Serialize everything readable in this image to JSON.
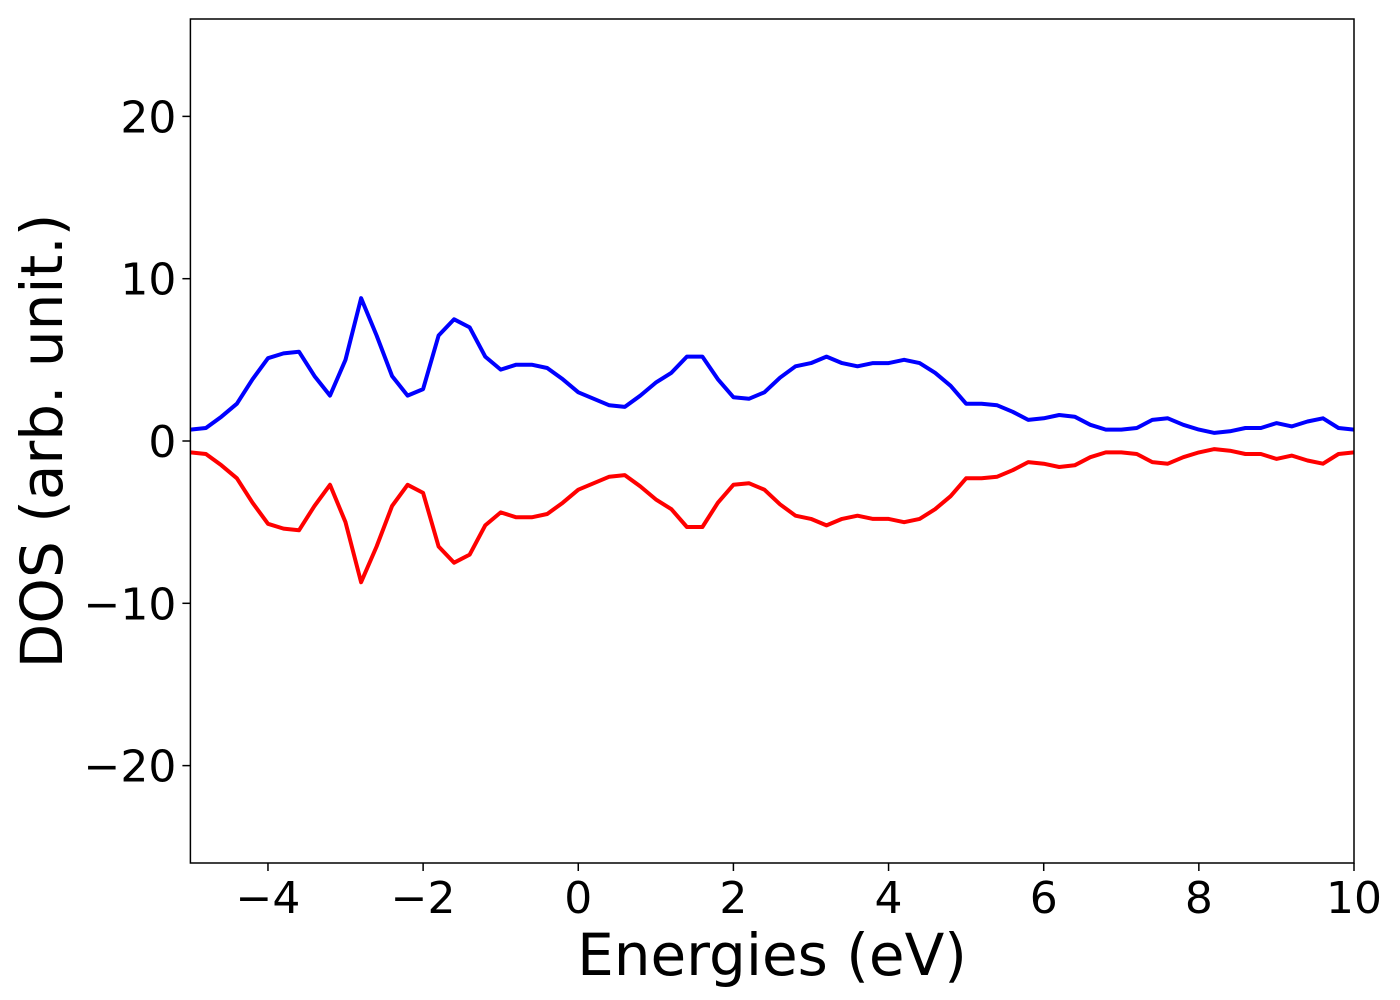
{
  "chart_data": {
    "type": "line",
    "xlabel": "Energies (eV)",
    "ylabel": "DOS (arb. unit.)",
    "x": [
      -5.0,
      -4.8,
      -4.6,
      -4.4,
      -4.2,
      -4.0,
      -3.8,
      -3.6,
      -3.4,
      -3.2,
      -3.0,
      -2.8,
      -2.6,
      -2.4,
      -2.2,
      -2.0,
      -1.8,
      -1.6,
      -1.4,
      -1.2,
      -1.0,
      -0.8,
      -0.6,
      -0.4,
      -0.2,
      0.0,
      0.2,
      0.4,
      0.6,
      0.8,
      1.0,
      1.2,
      1.4,
      1.6,
      1.8,
      2.0,
      2.2,
      2.4,
      2.6,
      2.8,
      3.0,
      3.2,
      3.4,
      3.6,
      3.8,
      4.0,
      4.2,
      4.4,
      4.6,
      4.8,
      5.0,
      5.2,
      5.4,
      5.6,
      5.8,
      6.0,
      6.2,
      6.4,
      6.6,
      6.8,
      7.0,
      7.2,
      7.4,
      7.6,
      7.8,
      8.0,
      8.2,
      8.4,
      8.6,
      8.8,
      9.0,
      9.2,
      9.4,
      9.6,
      9.8,
      10.0
    ],
    "series": [
      {
        "color": "#0000ff",
        "values": [
          0.7,
          0.8,
          1.5,
          2.3,
          3.8,
          5.1,
          5.4,
          5.5,
          4.0,
          2.8,
          5.0,
          8.8,
          6.5,
          4.0,
          2.8,
          3.2,
          6.5,
          7.5,
          7.0,
          5.2,
          4.4,
          4.7,
          4.7,
          4.5,
          3.8,
          3.0,
          2.6,
          2.2,
          2.1,
          2.8,
          3.6,
          4.2,
          5.2,
          5.2,
          3.8,
          2.7,
          2.6,
          3.0,
          3.9,
          4.6,
          4.8,
          5.2,
          4.8,
          4.6,
          4.8,
          4.8,
          5.0,
          4.8,
          4.2,
          3.4,
          2.3,
          2.3,
          2.2,
          1.8,
          1.3,
          1.4,
          1.6,
          1.5,
          1.0,
          0.7,
          0.7,
          0.8,
          1.3,
          1.4,
          1.0,
          0.7,
          0.5,
          0.6,
          0.8,
          0.8,
          1.1,
          0.9,
          1.2,
          1.4,
          0.8,
          0.7
        ]
      },
      {
        "color": "#ff0000",
        "values": [
          -0.7,
          -0.8,
          -1.5,
          -2.3,
          -3.8,
          -5.1,
          -5.4,
          -5.5,
          -4.0,
          -2.7,
          -5.0,
          -8.7,
          -6.5,
          -4.0,
          -2.7,
          -3.2,
          -6.5,
          -7.5,
          -7.0,
          -5.2,
          -4.4,
          -4.7,
          -4.7,
          -4.5,
          -3.8,
          -3.0,
          -2.6,
          -2.2,
          -2.1,
          -2.8,
          -3.6,
          -4.2,
          -5.3,
          -5.3,
          -3.8,
          -2.7,
          -2.6,
          -3.0,
          -3.9,
          -4.6,
          -4.8,
          -5.2,
          -4.8,
          -4.6,
          -4.8,
          -4.8,
          -5.0,
          -4.8,
          -4.2,
          -3.4,
          -2.3,
          -2.3,
          -2.2,
          -1.8,
          -1.3,
          -1.4,
          -1.6,
          -1.5,
          -1.0,
          -0.7,
          -0.7,
          -0.8,
          -1.3,
          -1.4,
          -1.0,
          -0.7,
          -0.5,
          -0.6,
          -0.8,
          -0.8,
          -1.1,
          -0.9,
          -1.2,
          -1.4,
          -0.8,
          -0.7
        ]
      }
    ],
    "xlim": [
      -5,
      10
    ],
    "xticks": [
      {
        "value": -4,
        "label": "−4"
      },
      {
        "value": -2,
        "label": "−2"
      },
      0,
      2,
      4,
      6,
      8,
      10
    ],
    "ylim": [
      -26,
      26
    ],
    "yticks": [
      {
        "value": -20,
        "label": "−20"
      },
      {
        "value": -10,
        "label": "−10"
      },
      0,
      10,
      20
    ],
    "grid": false
  }
}
